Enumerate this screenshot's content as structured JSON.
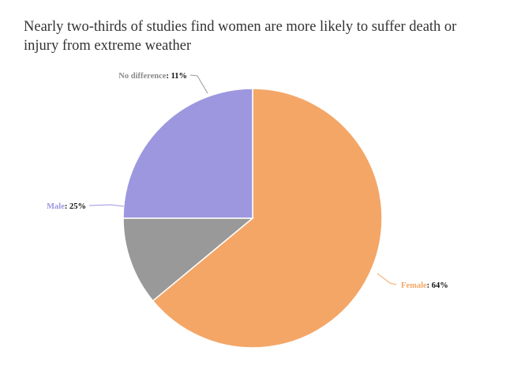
{
  "title": "Nearly two-thirds of studies find women are more likely to suffer death or injury from extreme weather",
  "chart_data": {
    "type": "pie",
    "title": "Nearly two-thirds of studies find women are more likely to suffer death or injury from extreme weather",
    "slices": [
      {
        "label": "Female",
        "value": 64,
        "display": "64%",
        "color": "#f4a667"
      },
      {
        "label": "No difference",
        "value": 11,
        "display": "11%",
        "color": "#999999"
      },
      {
        "label": "Male",
        "value": 25,
        "display": "25%",
        "color": "#9d97df"
      }
    ],
    "label_colors": {
      "Female": "#f4a667",
      "No difference": "#8a8a8a",
      "Male": "#9d97df"
    },
    "start_angle_deg": 0,
    "direction": "clockwise",
    "legend": "none"
  }
}
